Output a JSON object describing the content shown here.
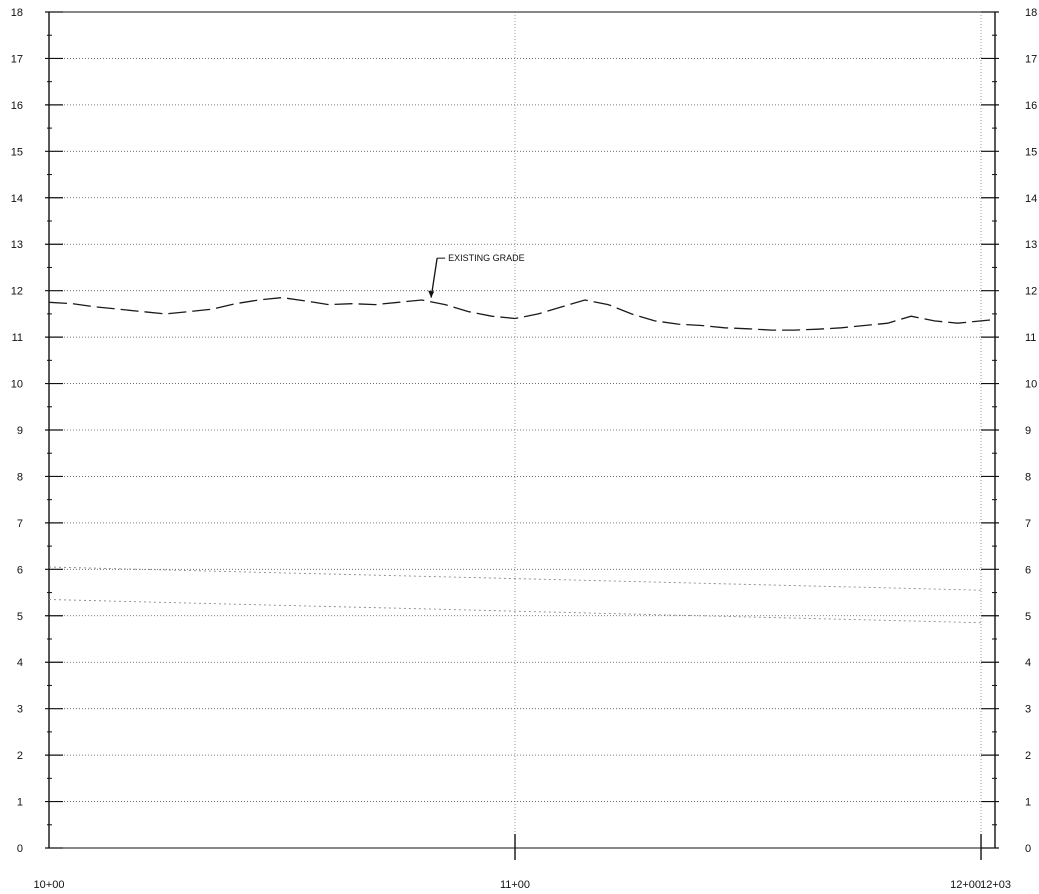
{
  "chart_data": {
    "type": "line",
    "title": "",
    "xlabel": "",
    "ylabel": "",
    "x_ticks": [
      {
        "label": "10+00",
        "value": 1000
      },
      {
        "label": "11+00",
        "value": 1100
      },
      {
        "label": "12+00",
        "value": 1200
      },
      {
        "label": "12+03",
        "value": 1203
      }
    ],
    "y_ticks": [
      0,
      1,
      2,
      3,
      4,
      5,
      6,
      7,
      8,
      9,
      10,
      11,
      12,
      13,
      14,
      15,
      16,
      17,
      18
    ],
    "xlim": [
      1000,
      1203
    ],
    "ylim": [
      0,
      18
    ],
    "grid": true,
    "series": [
      {
        "name": "EXISTING GRADE",
        "style": "dashed",
        "color": "#1a1a1a",
        "x": [
          1000,
          1005,
          1010,
          1015,
          1020,
          1025,
          1030,
          1035,
          1040,
          1045,
          1050,
          1055,
          1060,
          1065,
          1070,
          1075,
          1080,
          1085,
          1090,
          1095,
          1100,
          1105,
          1110,
          1115,
          1120,
          1125,
          1130,
          1135,
          1140,
          1145,
          1150,
          1155,
          1160,
          1165,
          1170,
          1175,
          1180,
          1185,
          1190,
          1195,
          1200,
          1203
        ],
        "y": [
          11.75,
          11.72,
          11.65,
          11.6,
          11.55,
          11.5,
          11.55,
          11.6,
          11.72,
          11.8,
          11.85,
          11.78,
          11.7,
          11.72,
          11.7,
          11.75,
          11.8,
          11.7,
          11.55,
          11.45,
          11.4,
          11.5,
          11.65,
          11.8,
          11.7,
          11.5,
          11.35,
          11.28,
          11.25,
          11.2,
          11.18,
          11.15,
          11.15,
          11.17,
          11.2,
          11.25,
          11.3,
          11.45,
          11.35,
          11.3,
          11.35,
          11.38
        ]
      },
      {
        "name": "",
        "style": "dotted",
        "color": "#8a8a8a",
        "x": [
          1000,
          1040,
          1080,
          1120,
          1160,
          1200
        ],
        "y": [
          6.05,
          5.95,
          5.85,
          5.75,
          5.65,
          5.55
        ]
      },
      {
        "name": "",
        "style": "dotted",
        "color": "#8a8a8a",
        "x": [
          1000,
          1040,
          1080,
          1120,
          1160,
          1200
        ],
        "y": [
          5.35,
          5.25,
          5.15,
          5.05,
          4.95,
          4.85
        ]
      }
    ],
    "annotations": [
      {
        "text": "EXISTING GRADE",
        "x": 1082,
        "y": 12.7,
        "arrow_to": {
          "x": 1082,
          "y": 11.85
        }
      }
    ]
  }
}
